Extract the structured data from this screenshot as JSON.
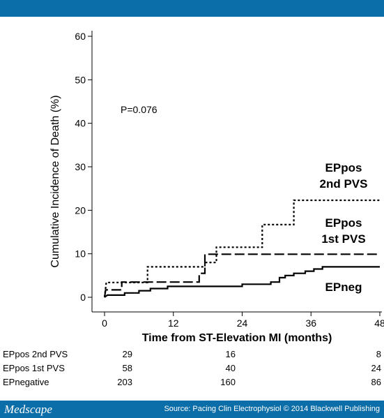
{
  "header": {},
  "chart_data": {
    "type": "line",
    "step": true,
    "xlabel": "Time from ST-Elevation MI (months)",
    "ylabel": "Cumulative Incidence of Death (%)",
    "xlim": [
      0,
      48
    ],
    "ylim": [
      0,
      60
    ],
    "xticks": [
      "0",
      "12",
      "24",
      "36",
      "48"
    ],
    "yticks": [
      "0",
      "10",
      "20",
      "30",
      "40",
      "50",
      "60"
    ],
    "grid": false,
    "annotation": "P=0.076",
    "series": [
      {
        "name": "EPpos 2nd PVS",
        "label_lines": [
          "EPpos",
          "2nd PVS"
        ],
        "style": "dotted",
        "color": "#000000",
        "points": [
          [
            0,
            0
          ],
          [
            0.3,
            3.4
          ],
          [
            7.5,
            3.4
          ],
          [
            7.5,
            7.0
          ],
          [
            17.5,
            7.0
          ],
          [
            17.5,
            8.0
          ],
          [
            19.5,
            8.0
          ],
          [
            19.5,
            11.5
          ],
          [
            27.5,
            11.5
          ],
          [
            27.5,
            16.7
          ],
          [
            33,
            16.7
          ],
          [
            33,
            22.3
          ],
          [
            48,
            22.3
          ]
        ]
      },
      {
        "name": "EPpos 1st PVS",
        "label_lines": [
          "EPpos",
          "1st PVS"
        ],
        "style": "dashed",
        "color": "#000000",
        "points": [
          [
            0,
            0
          ],
          [
            0.2,
            1.7
          ],
          [
            3,
            1.7
          ],
          [
            3,
            3.5
          ],
          [
            16.5,
            3.5
          ],
          [
            16.5,
            5.5
          ],
          [
            17.5,
            5.5
          ],
          [
            17.5,
            9.9
          ],
          [
            48,
            9.9
          ]
        ]
      },
      {
        "name": "EPneg",
        "label_lines": [
          "EPneg"
        ],
        "style": "solid",
        "color": "#000000",
        "points": [
          [
            0,
            0
          ],
          [
            0.5,
            0.5
          ],
          [
            3.5,
            0.5
          ],
          [
            3.5,
            1.0
          ],
          [
            6,
            1.0
          ],
          [
            6,
            1.5
          ],
          [
            8,
            1.5
          ],
          [
            8,
            2.0
          ],
          [
            11,
            2.0
          ],
          [
            11,
            2.5
          ],
          [
            24,
            2.5
          ],
          [
            24,
            3.0
          ],
          [
            29,
            3.0
          ],
          [
            29,
            3.5
          ],
          [
            30.5,
            3.5
          ],
          [
            30.5,
            4.5
          ],
          [
            31.5,
            4.5
          ],
          [
            31.5,
            5.0
          ],
          [
            33,
            5.0
          ],
          [
            33,
            5.5
          ],
          [
            35,
            5.5
          ],
          [
            35,
            6.0
          ],
          [
            36.5,
            6.0
          ],
          [
            36.5,
            6.5
          ],
          [
            38,
            6.5
          ],
          [
            38,
            7.0
          ],
          [
            48,
            7.0
          ]
        ]
      }
    ]
  },
  "risk_table": {
    "rows": [
      {
        "label": "EPpos 2nd PVS",
        "values": [
          "29",
          "16",
          "8"
        ]
      },
      {
        "label": "EPpos 1st PVS",
        "values": [
          "58",
          "40",
          "24"
        ]
      },
      {
        "label": "EPnegative",
        "values": [
          "203",
          "160",
          "86"
        ]
      }
    ]
  },
  "footer": {
    "brand": "Medscape",
    "source": "Source: Pacing Clin Electrophysiol © 2014 Blackwell Publishing"
  }
}
